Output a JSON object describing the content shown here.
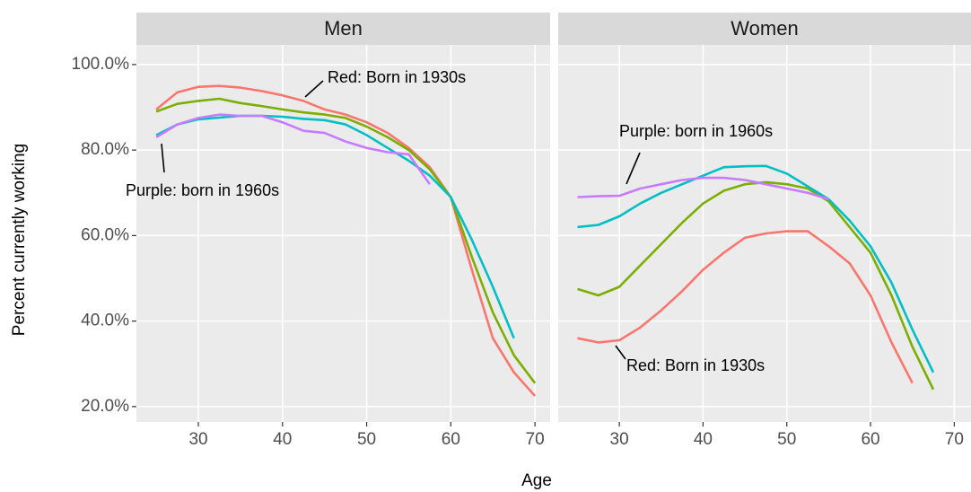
{
  "chart_data": [
    {
      "type": "line",
      "title": "Men",
      "ylabel": "Percent currently working",
      "xlabel": "Age",
      "x": [
        25,
        27.5,
        30,
        32.5,
        35,
        37.5,
        40,
        42.5,
        45,
        47.5,
        50,
        52.5,
        55,
        57.5,
        60,
        62.5,
        65,
        67.5,
        70
      ],
      "series": [
        {
          "color": "#F8766D",
          "values": [
            89.5,
            93.5,
            94.8,
            95,
            94.6,
            93.8,
            92.8,
            91.5,
            89.5,
            88.3,
            86.5,
            84,
            80.5,
            76,
            69,
            52,
            36,
            28,
            22.5
          ]
        },
        {
          "color": "#7CAE00",
          "values": [
            89,
            90.8,
            91.5,
            92,
            91,
            90.3,
            89.5,
            88.8,
            88.3,
            87.5,
            85.5,
            83,
            80,
            75.5,
            69,
            55,
            42,
            32,
            25.5
          ]
        },
        {
          "color": "#00BFC4",
          "values": [
            83.5,
            86,
            87.2,
            87.6,
            88,
            88,
            87.8,
            87.3,
            87,
            86,
            83.5,
            80.5,
            77.5,
            74,
            69,
            59,
            48,
            36,
            null
          ]
        },
        {
          "color": "#C77CFF",
          "values": [
            83,
            86,
            87.5,
            88.3,
            88,
            88,
            86.5,
            84.5,
            84,
            82,
            80.5,
            79.5,
            79,
            72,
            null,
            null,
            null,
            null,
            null
          ]
        }
      ],
      "xlim": [
        22.64,
        71.8
      ],
      "xticks": [
        30,
        40,
        50,
        60,
        70
      ],
      "ylim": [
        16.4,
        104.6
      ],
      "yticks": [
        {
          "value": 20,
          "label": "20.0%"
        },
        {
          "value": 40,
          "label": "40.0%"
        },
        {
          "value": 60,
          "label": "60.0%"
        },
        {
          "value": 80,
          "label": "80.0%"
        },
        {
          "value": 100,
          "label": "100.0%"
        }
      ],
      "grid": true,
      "annotations": [
        "Red: Born in 1930s",
        "Purple: born in 1960s"
      ]
    },
    {
      "type": "line",
      "title": "Women",
      "x": [
        25,
        27.5,
        30,
        32.5,
        35,
        37.5,
        40,
        42.5,
        45,
        47.5,
        50,
        52.5,
        55,
        57.5,
        60,
        62.5,
        65,
        67.5,
        70
      ],
      "series": [
        {
          "color": "#F8766D",
          "values": [
            36,
            35,
            35.5,
            38.5,
            42.5,
            47,
            52,
            56,
            59.5,
            60.5,
            61,
            61,
            57.5,
            53.5,
            46,
            35,
            25.5,
            null,
            null
          ]
        },
        {
          "color": "#7CAE00",
          "values": [
            47.5,
            46,
            48,
            53,
            58,
            63,
            67.5,
            70.5,
            72,
            72.5,
            72,
            71,
            68,
            62,
            56,
            46,
            34,
            24,
            null
          ]
        },
        {
          "color": "#00BFC4",
          "values": [
            62,
            62.5,
            64.5,
            67.5,
            70,
            72,
            74,
            76,
            76.2,
            76.3,
            74.5,
            71.5,
            68.5,
            63.5,
            57.5,
            49,
            38,
            28,
            null
          ]
        },
        {
          "color": "#C77CFF",
          "values": [
            69,
            69.2,
            69.3,
            71,
            72,
            73,
            73.5,
            73.5,
            73,
            72,
            71,
            70,
            68.5,
            null,
            null,
            null,
            null,
            null,
            null
          ]
        }
      ],
      "xlim": [
        22.7,
        72.0
      ],
      "xticks": [
        30,
        40,
        50,
        60,
        70
      ],
      "ylim": [
        16.4,
        104.6
      ],
      "yticks": [
        {
          "value": 20,
          "label": "20.0%"
        },
        {
          "value": 40,
          "label": "40.0%"
        },
        {
          "value": 60,
          "label": "60.0%"
        },
        {
          "value": 80,
          "label": "80.0%"
        },
        {
          "value": 100,
          "label": "100.0%"
        }
      ],
      "grid": true,
      "annotations": [
        "Purple: born in 1960s",
        "Red: Born in 1930s"
      ]
    }
  ]
}
